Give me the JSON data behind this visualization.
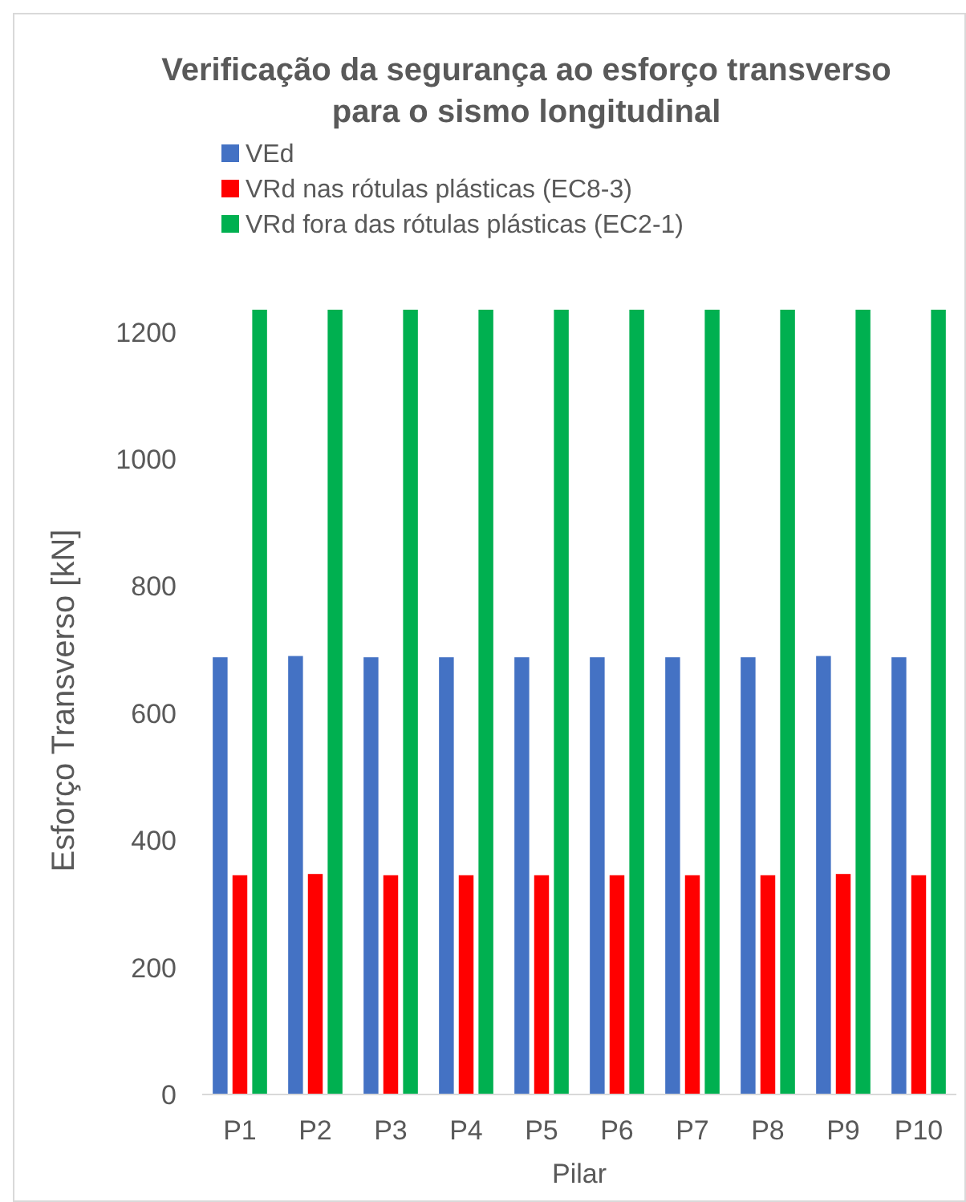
{
  "chart_data": {
    "type": "bar",
    "title": "Verificação da segurança ao esforço transverso para o sismo longitudinal",
    "xlabel": "Pilar",
    "ylabel": "Esforço Transverso [kN]",
    "categories": [
      "P1",
      "P2",
      "P3",
      "P4",
      "P5",
      "P6",
      "P7",
      "P8",
      "P9",
      "P10"
    ],
    "series": [
      {
        "name": "VEd",
        "color": "#4472c4",
        "values": [
          688,
          690,
          688,
          688,
          688,
          688,
          688,
          688,
          690,
          688
        ]
      },
      {
        "name": "VRd nas rótulas plásticas (EC8-3)",
        "color": "#ff0000",
        "values": [
          345,
          347,
          345,
          345,
          345,
          345,
          345,
          345,
          347,
          345
        ]
      },
      {
        "name": "VRd fora das rótulas plásticas (EC2-1)",
        "color": "#00b050",
        "values": [
          1235,
          1235,
          1235,
          1235,
          1235,
          1235,
          1235,
          1235,
          1235,
          1235
        ]
      }
    ],
    "ylim": [
      0,
      1240
    ],
    "yticks": [
      0,
      200,
      400,
      600,
      800,
      1000,
      1200
    ],
    "grid": false,
    "legend": "top left"
  }
}
